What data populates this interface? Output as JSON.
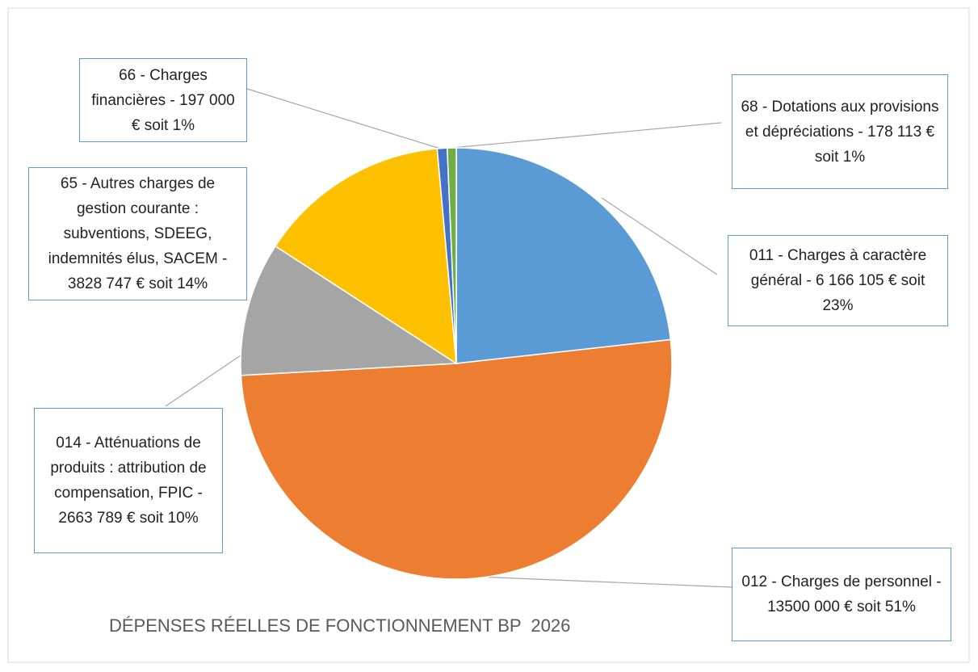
{
  "chart_data": {
    "type": "pie",
    "title": "DÉPENSES RÉELLES DE FONCTIONNEMENT BP  2026",
    "categories": [
      "011 - Charges à caractère général -",
      "012 - Charges de personnel -",
      "014 - Atténuations de produits : attribution de compensation, FPIC -",
      "65 - Autres charges de gestion courante : subventions, SDEEG, indemnités élus, SACEM -",
      "66 - Charges financières -",
      "68 - Dotations aux provisions et dépréciations -"
    ],
    "values": [
      6166105,
      13500000,
      2663789,
      3828747,
      197000,
      178113
    ],
    "value_labels": [
      "6 166 105 € soit  23%",
      "13500 000 € soit 51%",
      "2663 789 €  soit 10%",
      "3828 747 €  soit 14%",
      "197 000 €  soit 1%",
      "178 113 €  soit 1%"
    ],
    "colors": [
      "#5b9bd5",
      "#ed7d31",
      "#a5a5a5",
      "#ffc000",
      "#4472c4",
      "#70ad47"
    ]
  }
}
